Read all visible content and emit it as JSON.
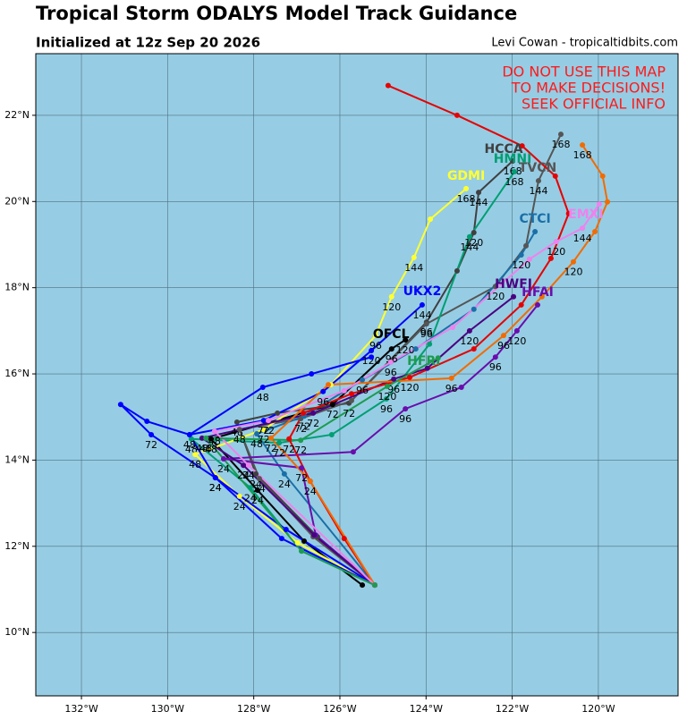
{
  "chart_data": {
    "type": "track",
    "title": "Tropical Storm ODALYS Model Track Guidance",
    "subtitle": "Initialized at 12z Sep 20 2026",
    "credit": "Levi Cowan - tropicaltidbits.com",
    "warning": [
      "DO NOT USE THIS MAP",
      "TO MAKE DECISIONS!",
      "SEEK OFFICIAL INFO"
    ],
    "warning_color": "#ff1a1a",
    "background": "#96cde4",
    "grid": true,
    "xlim": [
      -133.06,
      -118.15
    ],
    "ylim": [
      8.53,
      23.43
    ],
    "xticks": [
      {
        "value": -132,
        "label": "132°W"
      },
      {
        "value": -130,
        "label": "130°W"
      },
      {
        "value": -128,
        "label": "128°W"
      },
      {
        "value": -126,
        "label": "126°W"
      },
      {
        "value": -124,
        "label": "124°W"
      },
      {
        "value": -122,
        "label": "122°W"
      },
      {
        "value": -120,
        "label": "120°W"
      }
    ],
    "yticks": [
      {
        "value": 10,
        "label": "10°N"
      },
      {
        "value": 12,
        "label": "12°N"
      },
      {
        "value": 14,
        "label": "14°N"
      },
      {
        "value": 16,
        "label": "16°N"
      },
      {
        "value": 18,
        "label": "18°N"
      },
      {
        "value": 20,
        "label": "20°N"
      },
      {
        "value": 22,
        "label": "22°N"
      }
    ],
    "series": [
      {
        "name": "OFCL",
        "color": "#000000",
        "x": [
          -125.48,
          -126.83,
          -127.91,
          -128.99,
          -126.17,
          -124.8,
          -124.48
        ],
        "y": [
          11.1,
          12.12,
          13.3,
          14.49,
          15.29,
          16.58,
          16.79
        ],
        "hours": [
          null,
          null,
          24,
          48,
          72,
          96,
          120
        ]
      },
      {
        "name": "HCCA",
        "color": "#404040",
        "x": [
          -125.19,
          -126.52,
          -127.95,
          -128.39,
          -127.45,
          -125.79,
          -123.99,
          -123.28,
          -122.89,
          -122.78,
          -121.99
        ],
        "y": [
          11.1,
          12.22,
          13.68,
          14.88,
          15.09,
          15.32,
          17.2,
          18.39,
          19.28,
          20.21,
          20.94
        ],
        "hours": [
          null,
          null,
          24,
          48,
          null,
          72,
          96,
          null,
          120,
          144,
          168
        ]
      },
      {
        "name": "TVCN",
        "color": "#555555",
        "x": [
          -125.19,
          -126.62,
          -127.87,
          -128.33,
          -126.91,
          -125.73,
          -123.99,
          -122.39,
          -121.68,
          -121.39,
          -120.87
        ],
        "y": [
          11.1,
          12.22,
          13.57,
          14.71,
          14.96,
          15.38,
          17.16,
          18.03,
          18.97,
          20.48,
          21.56
        ],
        "hours": [
          null,
          null,
          24,
          48,
          72,
          null,
          96,
          120,
          null,
          144,
          168
        ]
      },
      {
        "name": "HMNI",
        "color": "#009e73",
        "x": [
          -125.19,
          -126.89,
          -128.08,
          -129.45,
          -127.41,
          -126.19,
          -124.92,
          -123.92,
          -122.99,
          -121.95
        ],
        "y": [
          11.1,
          11.89,
          13.36,
          14.49,
          14.4,
          14.59,
          15.42,
          16.69,
          19.18,
          20.69
        ],
        "hours": [
          null,
          null,
          24,
          48,
          72,
          null,
          96,
          null,
          144,
          168
        ]
      },
      {
        "name": "GDMI",
        "color": "#ffff33",
        "x": [
          -125.19,
          -126.98,
          -128.33,
          -129.36,
          -127.77,
          -126.21,
          -125.17,
          -124.8,
          -124.28,
          -123.9,
          -123.07
        ],
        "y": [
          11.1,
          12.08,
          13.16,
          14.13,
          14.71,
          15.75,
          16.89,
          17.79,
          18.7,
          19.59,
          20.3
        ],
        "hours": [
          null,
          null,
          24,
          48,
          72,
          null,
          96,
          120,
          144,
          null,
          168
        ]
      },
      {
        "name": "UKX2",
        "color": "#0000ff",
        "x": [
          -125.19,
          -127.35,
          -128.89,
          -129.49,
          -127.77,
          -126.39,
          -125.27,
          -124.09
        ],
        "y": [
          11.1,
          12.18,
          13.59,
          14.59,
          14.92,
          15.59,
          16.54,
          17.6
        ],
        "hours": [
          null,
          null,
          24,
          48,
          72,
          96,
          120,
          144
        ]
      },
      {
        "color": "#0000ff",
        "x": [
          -125.19,
          -127.25,
          -128.89,
          -130.38,
          -131.09,
          -130.48,
          -129.49,
          -127.79,
          -126.66,
          -125.27
        ],
        "y": [
          11.1,
          12.39,
          13.59,
          14.59,
          15.29,
          14.9,
          14.59,
          15.69,
          16.0,
          16.39
        ],
        "hours": [
          null,
          null,
          24,
          72,
          null,
          null,
          null,
          48,
          null,
          null
        ]
      },
      {
        "name": "CTCI",
        "color": "#1a6fa8",
        "x": [
          -125.19,
          -127.29,
          -127.93,
          -126.83,
          -125.48,
          -124.24,
          -122.89,
          -121.79,
          -121.47
        ],
        "y": [
          11.1,
          13.68,
          14.61,
          15.02,
          15.86,
          16.58,
          17.5,
          18.76,
          19.3
        ],
        "hours": [
          null,
          24,
          48,
          72,
          96,
          null,
          null,
          120,
          null
        ]
      },
      {
        "name": "HFAI",
        "color": "#6a0dad",
        "x": [
          -125.19,
          -126.56,
          -126.89,
          -128.7,
          -125.69,
          -124.48,
          -123.18,
          -122.39,
          -121.89,
          -121.41
        ],
        "y": [
          11.1,
          12.26,
          13.82,
          14.03,
          14.19,
          15.19,
          15.69,
          16.39,
          17.0,
          17.6
        ],
        "hours": [
          null,
          null,
          72,
          24,
          null,
          96,
          null,
          96,
          120,
          null
        ]
      },
      {
        "name": "HWFI",
        "color": "#4b0082",
        "x": [
          -125.19,
          -126.6,
          -128.24,
          -129.2,
          -126.62,
          -124.75,
          -123.97,
          -122.99,
          -121.97
        ],
        "y": [
          11.1,
          12.26,
          13.88,
          14.51,
          15.09,
          15.88,
          16.13,
          17.0,
          17.79
        ],
        "hours": [
          null,
          null,
          24,
          48,
          72,
          96,
          null,
          120,
          null
        ]
      },
      {
        "color": "#e60000",
        "x": [
          -125.19,
          -125.9,
          -126.69,
          -127.18,
          -126.85,
          -125.73,
          -124.38,
          -122.89,
          -121.79,
          -121.1,
          -120.69,
          -121.0,
          -121.77,
          -123.28,
          -124.88
        ],
        "y": [
          11.1,
          12.18,
          13.51,
          14.49,
          15.09,
          15.54,
          15.92,
          16.58,
          17.6,
          18.68,
          19.72,
          20.59,
          21.29,
          22.0,
          22.69
        ],
        "hours": [
          null,
          null,
          24,
          72,
          null,
          null,
          120,
          null,
          null,
          null,
          null,
          null,
          null,
          null,
          null
        ]
      },
      {
        "color": "#f26b00",
        "x": [
          -125.19,
          -126.69,
          -127.6,
          -126.27,
          -123.41,
          -122.2,
          -121.31,
          -120.58,
          -120.08,
          -119.79,
          -119.9,
          -120.37
        ],
        "y": [
          11.1,
          13.51,
          14.51,
          15.75,
          15.9,
          16.89,
          17.79,
          18.6,
          19.3,
          19.99,
          20.59,
          21.31
        ],
        "hours": [
          null,
          null,
          72,
          null,
          96,
          96,
          null,
          120,
          null,
          null,
          null,
          168
        ]
      },
      {
        "name": "EMXI",
        "color": "#ee82ee",
        "x": [
          -125.19,
          -128.12,
          -128.91,
          -127.66,
          -125.9,
          -124.82,
          -123.38,
          -121.6,
          -120.98,
          -120.37,
          -119.98
        ],
        "y": [
          11.1,
          13.88,
          14.67,
          14.92,
          15.61,
          16.27,
          17.08,
          18.66,
          19.07,
          19.38,
          19.94
        ],
        "hours": [
          null,
          24,
          48,
          72,
          null,
          96,
          null,
          null,
          120,
          144,
          null
        ]
      },
      {
        "name": "HFRI",
        "color": "#1e9b50",
        "x": [
          -125.19,
          -126.89,
          -129.11,
          -126.91,
          -124.9,
          -123.72
        ],
        "y": [
          11.1,
          11.89,
          14.51,
          14.46,
          15.71,
          16.37
        ],
        "hours": [
          null,
          null,
          48,
          72,
          120,
          null
        ]
      }
    ]
  }
}
